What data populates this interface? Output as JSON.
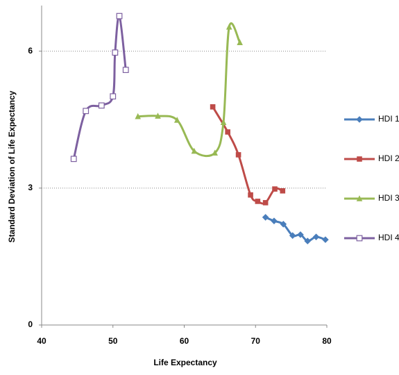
{
  "chart_data": {
    "type": "scatter",
    "x_label": "Life Expectancy",
    "y_label": "Standard Deviation of Life Expectancy",
    "xlim": [
      40,
      80
    ],
    "xticks": [
      40,
      50,
      60,
      70,
      80
    ],
    "ylim": [
      0,
      7
    ],
    "yticks": [
      0,
      3,
      6
    ],
    "grid": true,
    "legend": "right",
    "smooth": true,
    "series": [
      {
        "name": "HDI 1",
        "color": "#4a7ebb",
        "marker": "diamond",
        "x": [
          71.4,
          72.6,
          73.9,
          75.2,
          76.3,
          77.3,
          78.5,
          79.8
        ],
        "values": [
          2.36,
          2.28,
          2.21,
          1.96,
          1.98,
          1.84,
          1.93,
          1.87
        ]
      },
      {
        "name": "HDI 2",
        "color": "#be4b48",
        "marker": "square",
        "x": [
          64.0,
          66.1,
          67.6,
          69.3,
          70.3,
          71.4,
          72.7,
          73.8
        ],
        "values": [
          4.78,
          4.23,
          3.73,
          2.85,
          2.71,
          2.68,
          2.98,
          2.94
        ]
      },
      {
        "name": "HDI 3",
        "color": "#98b954",
        "marker": "triangle",
        "x": [
          53.5,
          56.3,
          59.0,
          61.4,
          64.3,
          65.5,
          66.3,
          67.8
        ],
        "values": [
          4.57,
          4.58,
          4.49,
          3.81,
          3.77,
          4.44,
          6.53,
          6.19
        ]
      },
      {
        "name": "HDI 4",
        "color": "#7d60a0",
        "marker": "open-square",
        "x": [
          44.5,
          46.2,
          48.4,
          50.0,
          50.3,
          50.9,
          51.8
        ],
        "values": [
          3.64,
          4.69,
          4.81,
          5.01,
          5.97,
          6.77,
          5.59
        ]
      }
    ]
  }
}
